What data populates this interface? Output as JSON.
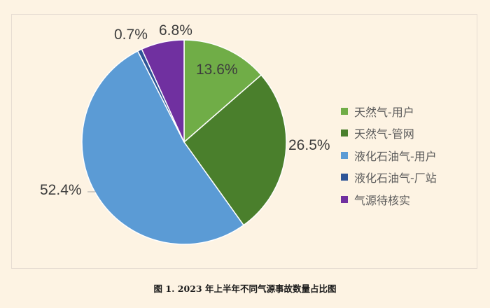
{
  "chart_data": {
    "type": "pie",
    "title": "",
    "caption": "图 1. 2023 年上半年不同气源事故数量占比图",
    "categories": [
      "天然气-用户",
      "天然气-管网",
      "液化石油气-用户",
      "液化石油气-厂站",
      "气源待核实"
    ],
    "values": [
      13.6,
      26.5,
      52.4,
      0.7,
      6.8
    ],
    "value_labels": [
      "13.6%",
      "26.5%",
      "52.4%",
      "0.7%",
      "6.8%"
    ],
    "colors": [
      "#70ad47",
      "#4a7f2c",
      "#5b9bd5",
      "#2e5597",
      "#7030a0"
    ],
    "start_angle": "12 o'clock, clockwise",
    "legend_position": "right"
  },
  "legend": {
    "items": [
      {
        "label": "天然气-用户",
        "color": "#70ad47"
      },
      {
        "label": "天然气-管网",
        "color": "#4a7f2c"
      },
      {
        "label": "液化石油气-用户",
        "color": "#5b9bd5"
      },
      {
        "label": "液化石油气-厂站",
        "color": "#2e5597"
      },
      {
        "label": "气源待核实",
        "color": "#7030a0"
      }
    ]
  },
  "labels": {
    "s0": "13.6%",
    "s1": "26.5%",
    "s2": "52.4%",
    "s3": "0.7%",
    "s4": "6.8%"
  },
  "caption": "图 1. 2023 年上半年不同气源事故数量占比图"
}
